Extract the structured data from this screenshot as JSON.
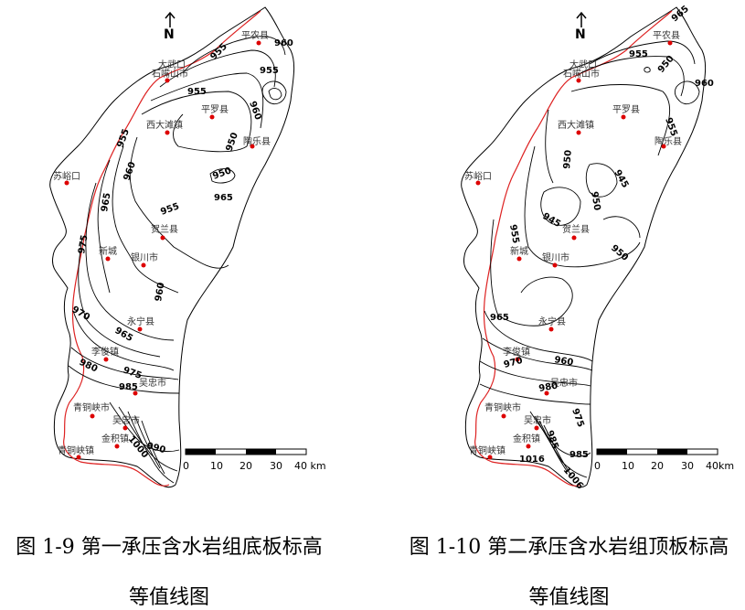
{
  "maps": [
    {
      "north_label": "N",
      "places": {
        "pingnong": "平农县",
        "dawukou": "大武口",
        "shizuishan": "石嘴山市",
        "xidatan": "西大滩镇",
        "pingluo": "平罗县",
        "taole": "陶乐县",
        "suyukou": "苏峪口",
        "helan": "贺兰县",
        "xincheng": "新城",
        "yinchuan": "银川市",
        "yongning": "永宁县",
        "lijun": "李俊镇",
        "wuzhong_city": "吴忠市",
        "qingtongxia_city": "青铜峡市",
        "wuzhong": "吴忠市",
        "jinji": "金积镇",
        "qingtongxia_town": "青铜峡镇"
      },
      "contours": [
        "955",
        "960",
        "955",
        "955",
        "960",
        "950",
        "955",
        "950",
        "955",
        "965",
        "960",
        "965",
        "975",
        "970",
        "965",
        "960",
        "980",
        "975",
        "985",
        "990",
        "1000",
        "960"
      ],
      "scale": [
        "0",
        "10",
        "20",
        "30",
        "40 km"
      ],
      "caption": "图 1-9 第一承压含水岩组底板标高",
      "caption_line2": "等值线图"
    },
    {
      "north_label": "N",
      "places": {
        "pingnong": "平农县",
        "dawukou": "大武口",
        "shizuishan": "石嘴山市",
        "xidatan": "西大滩镇",
        "pingluo": "平罗县",
        "taole": "陶乐县",
        "suyukou": "苏峪口",
        "helan": "贺兰县",
        "xincheng": "新城",
        "yinchuan": "银川市",
        "yongning": "永宁县",
        "lijun": "李俊镇",
        "wuzhong_city": "吴忠市",
        "qingtongxia_city": "青铜峡市",
        "wuzhong": "吴忠市",
        "jinji": "金积镇",
        "qingtongxia_town": "青铜峡镇"
      },
      "contours": [
        "965",
        "955",
        "950",
        "960",
        "955",
        "950",
        "945",
        "950",
        "945",
        "955",
        "950",
        "965",
        "960",
        "970",
        "980",
        "975",
        "985",
        "985",
        "1016",
        "1006"
      ],
      "scale": [
        "0",
        "10",
        "20",
        "30",
        "40km"
      ],
      "caption": "图 1-10 第二承压含水岩组顶板标高",
      "caption_line2": "等值线图"
    }
  ]
}
